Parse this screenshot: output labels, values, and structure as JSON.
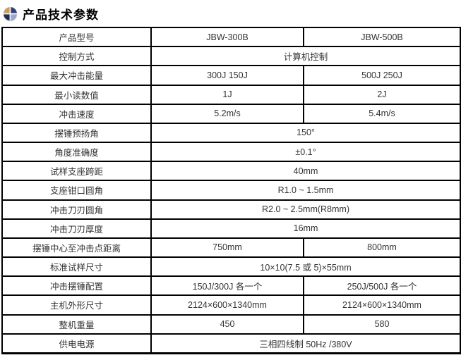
{
  "header": {
    "icon": "sphere-bullet-icon",
    "title": "产品技术参数"
  },
  "colors": {
    "table_border": "#000000",
    "cell_text": "#333333",
    "title_text": "#000000",
    "icon_quadrants": [
      "#c69e62",
      "#2e4372",
      "#9aa5d2",
      "#1c2c55"
    ]
  },
  "table": {
    "rows": [
      {
        "label": "产品型号",
        "values": [
          "JBW-300B",
          "JBW-500B"
        ]
      },
      {
        "label": "控制方式",
        "values": [
          "计算机控制"
        ]
      },
      {
        "label": "最大冲击能量",
        "values": [
          "300J 150J",
          "500J 250J"
        ]
      },
      {
        "label": "最小读数值",
        "values": [
          "1J",
          "2J"
        ]
      },
      {
        "label": "冲击速度",
        "values": [
          "5.2m/s",
          "5.4m/s"
        ]
      },
      {
        "label": "摆锤预扬角",
        "values": [
          "150°"
        ]
      },
      {
        "label": "角度准确度",
        "values": [
          "±0.1°"
        ]
      },
      {
        "label": "试样支座跨距",
        "values": [
          "40mm"
        ]
      },
      {
        "label": "支座钳口圆角",
        "values": [
          "R1.0 ~ 1.5mm"
        ]
      },
      {
        "label": "冲击刀刃圆角",
        "values": [
          "R2.0 ~ 2.5mm(R8mm)"
        ]
      },
      {
        "label": "冲击刀刃厚度",
        "values": [
          "16mm"
        ]
      },
      {
        "label": "摆锤中心至冲击点距离",
        "values": [
          "750mm",
          "800mm"
        ]
      },
      {
        "label": "标准试样尺寸",
        "values": [
          "10×10(7.5 或 5)×55mm"
        ]
      },
      {
        "label": "冲击摆锤配置",
        "values": [
          "150J/300J 各一个",
          "250J/500J 各一个"
        ]
      },
      {
        "label": "主机外形尺寸",
        "values": [
          "2124×600×1340mm",
          "2124×600×1340mm"
        ]
      },
      {
        "label": "整机重量",
        "values": [
          "450",
          "580"
        ]
      },
      {
        "label": "供电电源",
        "values": [
          "三相四线制 50Hz /380V"
        ]
      }
    ]
  }
}
